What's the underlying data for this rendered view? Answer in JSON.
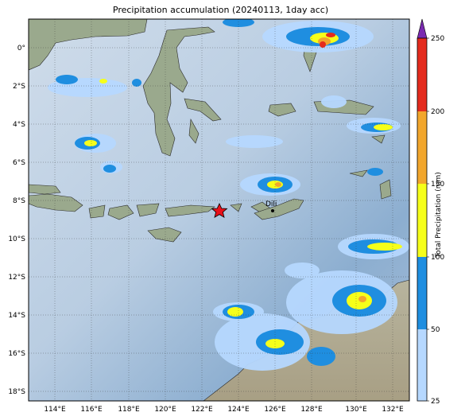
{
  "title": "Precipitation accumulation (20240113, 1day acc)",
  "map": {
    "lon_ticks": [
      "114°E",
      "116°E",
      "118°E",
      "120°E",
      "122°E",
      "124°E",
      "126°E",
      "128°E",
      "130°E",
      "132°E"
    ],
    "lat_ticks": [
      "0°",
      "2°S",
      "4°S",
      "6°S",
      "8°S",
      "10°S",
      "12°S",
      "14°S",
      "16°S",
      "18°S"
    ],
    "city_label": "Dili",
    "marker": "star",
    "colors": {
      "sea_light": "#c8d8e8",
      "sea_dark": "#7fa4c9",
      "land": "#9bad8e",
      "marker": "#e8101a"
    }
  },
  "colorbar": {
    "label": "Total Precipitation (mm)",
    "ticks": [
      "25",
      "50",
      "100",
      "150",
      "200",
      "250"
    ],
    "colors": [
      "#b6d8ff",
      "#1f8ee0",
      "#f6ff1a",
      "#f2a62c",
      "#e42b1e",
      "#7a2ab0"
    ]
  }
}
